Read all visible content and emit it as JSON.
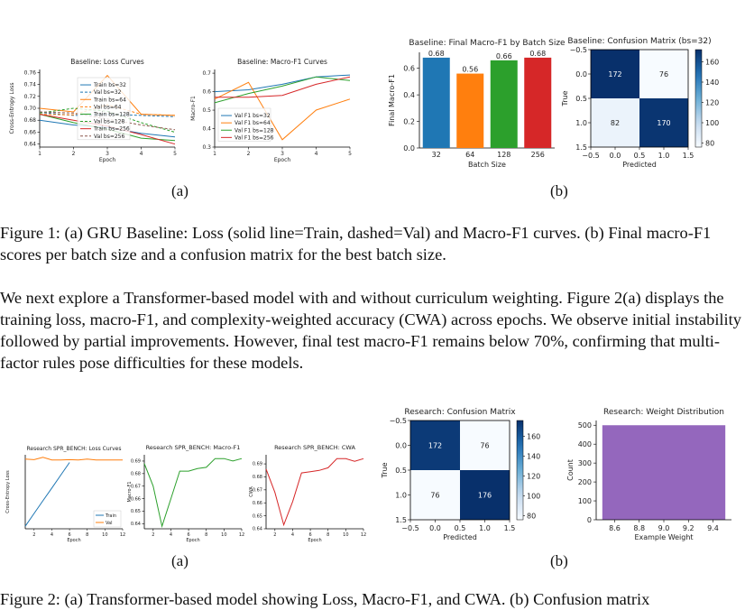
{
  "colors": {
    "blue": "#1f77b4",
    "orange": "#ff7f0e",
    "green": "#2ca02c",
    "red": "#d62728",
    "purple": "#9467bd",
    "brown": "#8c564b",
    "cm_dark": "#08306b",
    "cm_light": "#f7fbff"
  },
  "fig1": {
    "loss": {
      "title": "Baseline: Loss Curves",
      "xlabel": "Epoch",
      "ylabel": "Cross-Entropy Loss",
      "x": [
        1,
        2,
        3,
        4,
        5
      ],
      "xticks": [
        "1",
        "2",
        "3",
        "4",
        "5"
      ],
      "yticks": [
        "0.64",
        "0.66",
        "0.68",
        "0.70",
        "0.72",
        "0.74",
        "0.76"
      ],
      "ylim": [
        0.635,
        0.765
      ],
      "series": [
        {
          "name": "Train bs=32",
          "color": "#1f77b4",
          "dash": false,
          "values": [
            0.68,
            0.672,
            0.668,
            0.658,
            0.652
          ]
        },
        {
          "name": "Val bs=32",
          "color": "#1f77b4",
          "dash": true,
          "values": [
            0.693,
            0.688,
            0.69,
            0.688,
            0.686
          ]
        },
        {
          "name": "Train bs=64",
          "color": "#ff7f0e",
          "dash": false,
          "values": [
            0.7,
            0.694,
            0.755,
            0.69,
            0.688
          ]
        },
        {
          "name": "Val bs=64",
          "color": "#ff7f0e",
          "dash": true,
          "values": [
            0.69,
            0.689,
            0.706,
            0.69,
            0.688
          ]
        },
        {
          "name": "Train bs=128",
          "color": "#2ca02c",
          "dash": false,
          "values": [
            0.69,
            0.676,
            0.665,
            0.65,
            0.646
          ]
        },
        {
          "name": "Val bs=128",
          "color": "#2ca02c",
          "dash": true,
          "values": [
            0.692,
            0.7,
            0.695,
            0.676,
            0.66
          ]
        },
        {
          "name": "Train bs=256",
          "color": "#d62728",
          "dash": false,
          "values": [
            0.69,
            0.68,
            0.67,
            0.656,
            0.64
          ]
        },
        {
          "name": "Val bs=256",
          "color": "#8c564b",
          "dash": true,
          "values": [
            0.694,
            0.692,
            0.682,
            0.672,
            0.664
          ]
        }
      ]
    },
    "f1": {
      "title": "Baseline: Macro-F1 Curves",
      "xlabel": "Epoch",
      "ylabel": "Macro-F1",
      "x": [
        1,
        2,
        3,
        4,
        5
      ],
      "xticks": [
        "1",
        "2",
        "3",
        "4",
        "5"
      ],
      "yticks": [
        "0.3",
        "0.4",
        "0.5",
        "0.6",
        "0.7"
      ],
      "ylim": [
        0.3,
        0.72
      ],
      "series": [
        {
          "name": "Val F1 bs=32",
          "color": "#1f77b4",
          "dash": false,
          "values": [
            0.6,
            0.61,
            0.64,
            0.68,
            0.69
          ]
        },
        {
          "name": "Val F1 bs=64",
          "color": "#ff7f0e",
          "dash": false,
          "values": [
            0.56,
            0.65,
            0.34,
            0.5,
            0.56
          ]
        },
        {
          "name": "Val F1 bs=128",
          "color": "#2ca02c",
          "dash": false,
          "values": [
            0.54,
            0.59,
            0.63,
            0.68,
            0.66
          ]
        },
        {
          "name": "Val F1 bs=256",
          "color": "#d62728",
          "dash": false,
          "values": [
            0.57,
            0.57,
            0.58,
            0.64,
            0.68
          ]
        }
      ]
    },
    "bar": {
      "title": "Baseline: Final Macro-F1 by Batch Size",
      "xlabel": "Batch Size",
      "ylabel": "Final Macro-F1",
      "categories": [
        "32",
        "64",
        "128",
        "256"
      ],
      "values": [
        0.68,
        0.56,
        0.66,
        0.68
      ],
      "labels": [
        "0.68",
        "0.56",
        "0.66",
        "0.68"
      ],
      "colors": [
        "#1f77b4",
        "#ff7f0e",
        "#2ca02c",
        "#d62728"
      ],
      "yticks": [
        "0.0",
        "0.2",
        "0.4",
        "0.6"
      ],
      "ylim": [
        0,
        0.72
      ]
    },
    "cm": {
      "title": "Baseline: Confusion Matrix (bs=32)",
      "xlabel": "Predicted",
      "ylabel": "True",
      "values": [
        [
          172,
          76
        ],
        [
          82,
          170
        ]
      ],
      "xticks": [
        "−0.5",
        "0.0",
        "0.5",
        "1.0",
        "1.5"
      ],
      "yticks": [
        "−0.5",
        "0.0",
        "0.5",
        "1.0",
        "1.5"
      ],
      "cbar_ticks": [
        "80",
        "100",
        "120",
        "140",
        "160"
      ],
      "vmin": 76,
      "vmax": 172
    },
    "sub_a": "(a)",
    "sub_b": "(b)"
  },
  "caption1": "Figure 1: (a) GRU Baseline: Loss (solid line=Train, dashed=Val) and Macro-F1 curves. (b) Final macro-F1 scores per batch size and a confusion matrix for the best batch size.",
  "paragraph": "We next explore a Transformer-based model with and without curriculum weighting. Figure 2(a) displays the training loss, macro-F1, and complexity-weighted accuracy (CWA) across epochs. We observe initial instability followed by partial improvements. However, final test macro-F1 remains below 70%, confirming that multi-factor rules pose difficulties for these models.",
  "fig2": {
    "loss": {
      "title": "Research SPR_BENCH: Loss Curves",
      "xlabel": "Epoch",
      "ylabel": "Cross-Entropy Loss",
      "x": [
        1,
        2,
        3,
        4,
        5,
        6,
        7,
        8,
        9,
        10,
        11,
        12
      ],
      "xticks": [
        "2",
        "4",
        "6",
        "8",
        "10",
        "12"
      ],
      "series": [
        {
          "name": "Train",
          "color": "#1f77b4",
          "values": [
            0.43,
            0.48,
            0.53,
            0.58,
            0.63,
            0.68,
            null,
            null,
            null,
            null,
            null,
            null
          ]
        },
        {
          "name": "Val",
          "color": "#ff7f0e",
          "values": [
            0.693,
            0.691,
            0.7,
            0.69,
            0.69,
            0.691,
            0.69,
            0.693,
            0.69,
            0.69,
            0.69,
            0.69
          ]
        }
      ]
    },
    "f1": {
      "title": "Research SPR_BENCH: Macro-F1",
      "xlabel": "Epoch",
      "ylabel": "Macro-F1",
      "x": [
        1,
        2,
        3,
        4,
        5,
        6,
        7,
        8,
        9,
        10,
        11,
        12
      ],
      "yticks": [
        "0.64",
        "0.65",
        "0.66",
        "0.67",
        "0.68",
        "0.69"
      ],
      "series": [
        {
          "name": "",
          "color": "#2ca02c",
          "values": [
            0.688,
            0.67,
            0.638,
            0.66,
            0.682,
            0.682,
            0.684,
            0.685,
            0.692,
            0.692,
            0.69,
            0.692
          ]
        }
      ]
    },
    "cwa": {
      "title": "Research SPR_BENCH: CWA",
      "xlabel": "Epoch",
      "ylabel": "CWA",
      "x": [
        1,
        2,
        3,
        4,
        5,
        6,
        7,
        8,
        9,
        10,
        11,
        12
      ],
      "yticks": [
        "0.64",
        "0.65",
        "0.66",
        "0.67",
        "0.68",
        "0.69"
      ],
      "series": [
        {
          "name": "",
          "color": "#d62728",
          "values": [
            0.686,
            0.668,
            0.643,
            0.661,
            0.683,
            0.684,
            0.685,
            0.687,
            0.694,
            0.694,
            0.692,
            0.694
          ]
        }
      ]
    },
    "cm": {
      "title": "Research: Confusion Matrix",
      "xlabel": "Predicted",
      "ylabel": "True",
      "values": [
        [
          172,
          76
        ],
        [
          76,
          176
        ]
      ],
      "xticks": [
        "−0.5",
        "0.0",
        "0.5",
        "1.0",
        "1.5"
      ],
      "yticks": [
        "−0.5",
        "0.0",
        "0.5",
        "1.0",
        "1.5"
      ],
      "cbar_ticks": [
        "80",
        "100",
        "120",
        "140",
        "160"
      ],
      "vmin": 76,
      "vmax": 176
    },
    "hist": {
      "title": "Research: Weight Distribution",
      "xlabel": "Example Weight",
      "ylabel": "Count",
      "xticks": [
        "8.6",
        "8.8",
        "9.0",
        "9.2",
        "9.4"
      ],
      "yticks": [
        "0",
        "100",
        "200",
        "300",
        "400",
        "500"
      ],
      "bin": [
        8.5,
        9.5
      ],
      "count": 500,
      "color": "#9467bd"
    },
    "sub_a": "(a)",
    "sub_b": "(b)"
  },
  "caption2_partial": "Figure 2: (a) Transformer-based model showing Loss, Macro-F1, and CWA. (b) Confusion matrix"
}
